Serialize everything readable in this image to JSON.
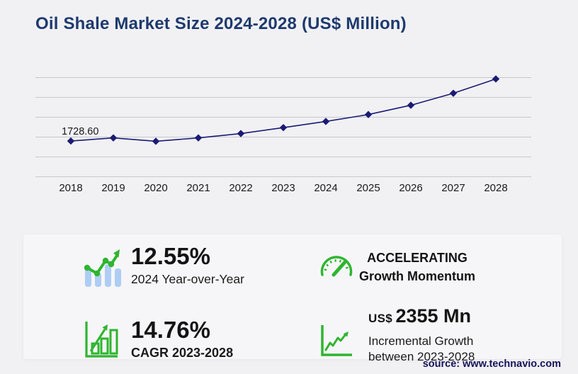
{
  "title": "Oil Shale Market Size 2024-2028 (US$ Million)",
  "source_text": "source: www.technavio.com",
  "colors": {
    "background": "#f1f1f4",
    "card": "#f6f6f8",
    "title": "#1e3a6d",
    "line": "#1b1b75",
    "grid": "#c8c8cd",
    "axis_text": "#1a1a1a",
    "green": "#2fb52f",
    "bar_blue": "#aecdf3",
    "source": "#14145a"
  },
  "chart_data": {
    "type": "line",
    "title": "Oil Shale Market Size 2024-2028 (US$ Million)",
    "x": [
      "2018",
      "2019",
      "2020",
      "2021",
      "2022",
      "2023",
      "2024",
      "2025",
      "2026",
      "2027",
      "2028"
    ],
    "values": [
      1728.6,
      1880,
      1715,
      1880,
      2090,
      2377,
      2675,
      3010,
      3460,
      4040,
      4732
    ],
    "first_point_label": "1728.60",
    "xlabel": "",
    "ylabel": "",
    "ylim": [
      0,
      4800
    ],
    "gridline_count": 6,
    "grid": "horizontal",
    "legend": "none",
    "marker": "diamond",
    "line_color": "#1b1b75"
  },
  "stats": {
    "yoy": {
      "value": "12.55%",
      "label": "2024 Year-over-Year",
      "icon": "bar-trend-icon"
    },
    "cagr": {
      "value": "14.76%",
      "label": "CAGR 2023-2028",
      "icon": "bar-growth-icon"
    },
    "momentum": {
      "line1": "ACCELERATING",
      "line2": "Growth Momentum",
      "icon": "gauge-icon"
    },
    "incremental": {
      "prefix": "US$",
      "value": "2355 Mn",
      "label_line1": "Incremental Growth",
      "label_line2": "between 2023-2028",
      "icon": "line-growth-icon"
    }
  }
}
